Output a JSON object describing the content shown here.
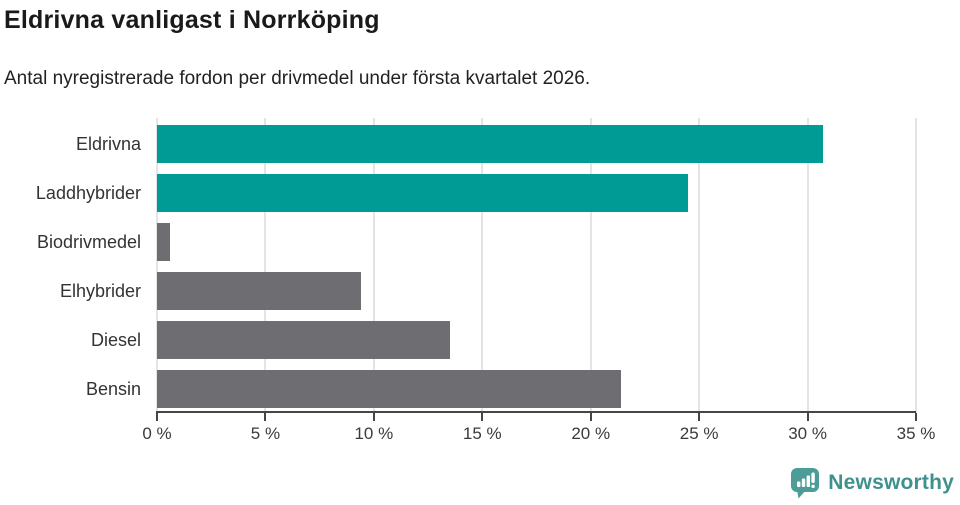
{
  "title": "Eldrivna vanligast i Norrköping",
  "subtitle": "Antal nyregistrerade fordon per drivmedel under första kvartalet 2026.",
  "chart_data": {
    "type": "bar",
    "orientation": "horizontal",
    "title": "Eldrivna vanligast i Norrköping",
    "subtitle": "Antal nyregistrerade fordon per drivmedel under första kvartalet 2026.",
    "categories": [
      "Eldrivna",
      "Laddhybrider",
      "Biodrivmedel",
      "Elhybrider",
      "Diesel",
      "Bensin"
    ],
    "values": [
      30.7,
      24.5,
      0.6,
      9.4,
      13.5,
      21.4
    ],
    "unit": "%",
    "bar_colors": [
      "#009b94",
      "#009b94",
      "#6d6d72",
      "#6d6d72",
      "#6d6d72",
      "#6d6d72"
    ],
    "xlim": [
      0,
      35
    ],
    "x_ticks": [
      0,
      5,
      10,
      15,
      20,
      25,
      30,
      35
    ],
    "x_tick_labels": [
      "0 %",
      "5 %",
      "10 %",
      "15 %",
      "20 %",
      "25 %",
      "30 %",
      "35 %"
    ],
    "grid": "vertical",
    "legend": "none"
  },
  "colors": {
    "highlight_teal": "#009b94",
    "neutral_gray": "#6d6d72",
    "gridline": "#e4e4e4",
    "axis": "#454545",
    "brand_teal": "#3f918d",
    "brand_icon_teal": "#4c9c97"
  },
  "branding": {
    "logo_text": "Newsworthy",
    "logo_icon": "speech-bubble-bar-chart-exclamation-icon"
  }
}
